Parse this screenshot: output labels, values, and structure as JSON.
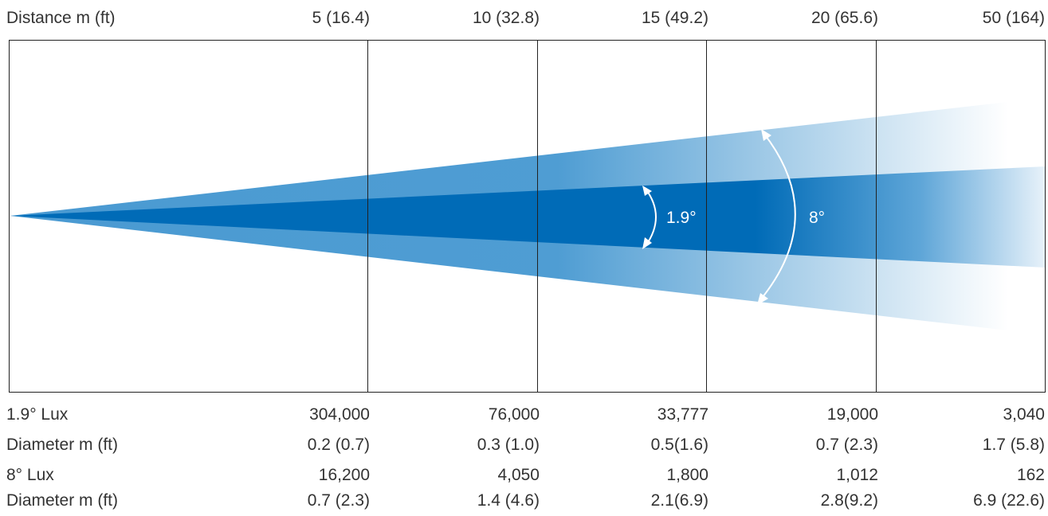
{
  "header": {
    "distance_label": "Distance m (ft)",
    "distances": [
      "5 (16.4)",
      "10 (32.8)",
      "15 (49.2)",
      "20 (65.6)",
      "50 (164)"
    ]
  },
  "beams": {
    "narrow_angle": "1.9°",
    "wide_angle": "8°",
    "narrow_color": "#006bb7",
    "wide_color": "#4a9ad2"
  },
  "table": {
    "rows": [
      {
        "label": "1.9° Lux",
        "values": [
          "304,000",
          "76,000",
          "33,777",
          "19,000",
          "3,040"
        ]
      },
      {
        "label": "Diameter m (ft)",
        "values": [
          "0.2 (0.7)",
          "0.3 (1.0)",
          "0.5(1.6)",
          "0.7 (2.3)",
          "1.7 (5.8)"
        ]
      },
      {
        "label": "8° Lux",
        "values": [
          "16,200",
          "4,050",
          "1,800",
          "1,012",
          "162"
        ]
      },
      {
        "label": "Diameter m (ft)",
        "values": [
          "0.7 (2.3)",
          "1.4 (4.6)",
          "2.1(6.9)",
          "2.8(9.2)",
          "6.9 (22.6)"
        ]
      }
    ]
  }
}
